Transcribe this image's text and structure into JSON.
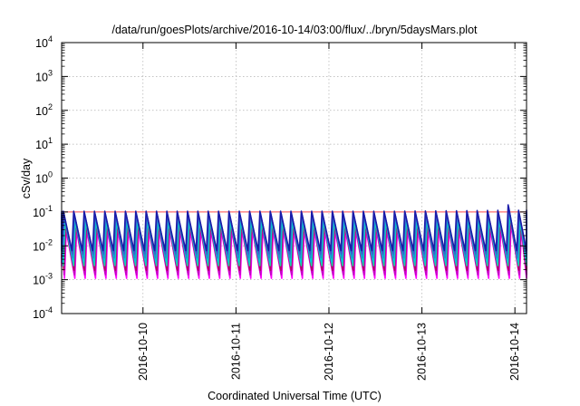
{
  "chart_data": {
    "type": "line",
    "title": "/data/run/goesPlots/archive/2016-10-14/03:00/flux/../bryn/5daysMars.plot",
    "xlabel": "Coordinated Universal Time (UTC)",
    "ylabel": "cSv/day",
    "yscale": "log",
    "ylim": [
      0.0001,
      10000
    ],
    "xlim": [
      "2016-10-09T03:00",
      "2016-10-14T03:00"
    ],
    "x_ticks": [
      "2016-10-10",
      "2016-10-11",
      "2016-10-12",
      "2016-10-13",
      "2016-10-14"
    ],
    "y_ticks": [
      {
        "base": "10",
        "exp": "-4"
      },
      {
        "base": "10",
        "exp": "-3"
      },
      {
        "base": "10",
        "exp": "-2"
      },
      {
        "base": "10",
        "exp": "-1"
      },
      {
        "base": "10",
        "exp": "0"
      },
      {
        "base": "10",
        "exp": "1"
      },
      {
        "base": "10",
        "exp": "2"
      },
      {
        "base": "10",
        "exp": "3"
      },
      {
        "base": "10",
        "exp": "4"
      }
    ],
    "grid": true,
    "reference_line": {
      "y": 0.1,
      "color": "#ff4d4d"
    },
    "pattern": {
      "period_hours": 2.67,
      "rise_hours": 0.45
    },
    "series": [
      {
        "color": "#1a1aa8",
        "peak": 0.105,
        "trough": 0.0072
      },
      {
        "color": "#3f5ccc",
        "peak": 0.092,
        "trough": 0.0058
      },
      {
        "color": "#1e8fd0",
        "peak": 0.078,
        "trough": 0.0044
      },
      {
        "color": "#00c8d8",
        "peak": 0.065,
        "trough": 0.0033
      },
      {
        "color": "#19d2a8",
        "peak": 0.055,
        "trough": 0.0026
      },
      {
        "color": "#b00d63",
        "peak": 0.045,
        "trough": 0.0019
      },
      {
        "color": "#c400c4",
        "peak": 0.036,
        "trough": 0.0014
      },
      {
        "color": "#ff00ff",
        "peak": 0.028,
        "trough": 0.0011
      }
    ],
    "final_peak": {
      "time": "2016-10-13T22:40",
      "scale": 1.45
    }
  }
}
